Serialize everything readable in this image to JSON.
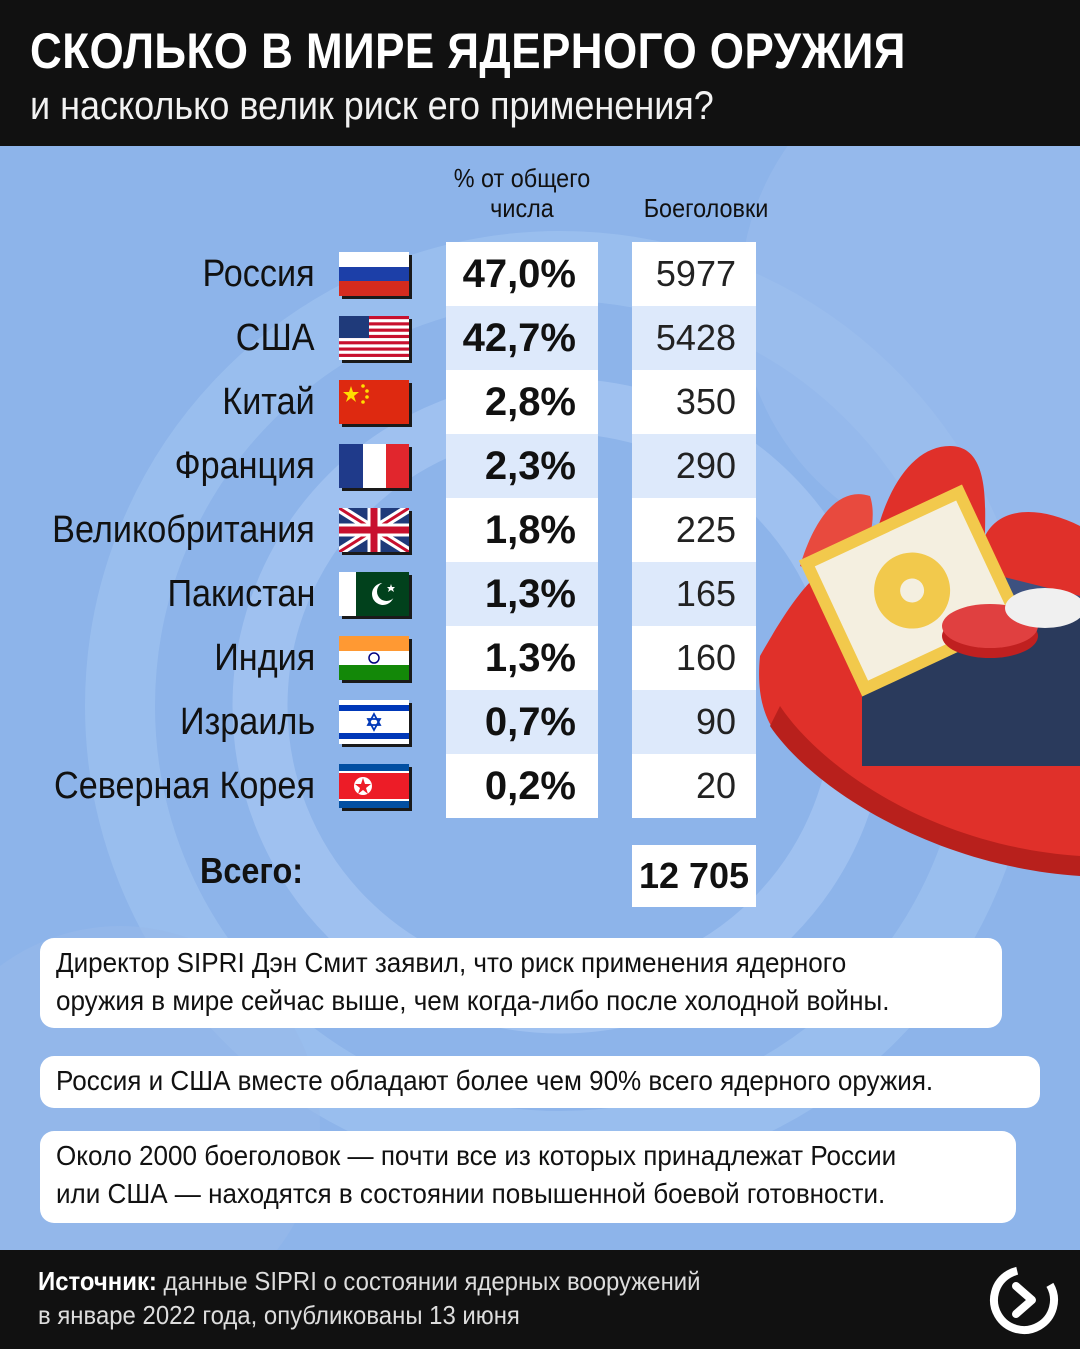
{
  "header": {
    "title": "СКОЛЬКО В МИРЕ ЯДЕРНОГО ОРУЖИЯ",
    "subtitle": "и насколько велик риск его применения?"
  },
  "chart_data": {
    "type": "table",
    "columns": {
      "percent_line1": "% от общего",
      "percent_line2": "числа",
      "warheads": "Боеголовки"
    },
    "rows": [
      {
        "country": "Россия",
        "flag": "russia-flag",
        "percent": "47,0%",
        "warheads": "5977"
      },
      {
        "country": "США",
        "flag": "usa-flag",
        "percent": "42,7%",
        "warheads": "5428"
      },
      {
        "country": "Китай",
        "flag": "china-flag",
        "percent": "2,8%",
        "warheads": "350"
      },
      {
        "country": "Франция",
        "flag": "france-flag",
        "percent": "2,3%",
        "warheads": "290"
      },
      {
        "country": "Великобритания",
        "flag": "uk-flag",
        "percent": "1,8%",
        "warheads": "225"
      },
      {
        "country": "Пакистан",
        "flag": "pakistan-flag",
        "percent": "1,3%",
        "warheads": "165"
      },
      {
        "country": "Индия",
        "flag": "india-flag",
        "percent": "1,3%",
        "warheads": "160"
      },
      {
        "country": "Израиль",
        "flag": "israel-flag",
        "percent": "0,7%",
        "warheads": "90"
      },
      {
        "country": "Северная Корея",
        "flag": "north-korea-flag",
        "percent": "0,2%",
        "warheads": "20"
      }
    ],
    "total_label": "Всего:",
    "total_value": "12 705"
  },
  "notes": [
    {
      "line1": "Директор SIPRI Дэн Смит заявил, что риск применения ядерного",
      "line2": "оружия в мире сейчас выше, чем когда-либо после холодной войны."
    },
    {
      "line1": "Россия и США вместе обладают более чем 90% всего ядерного оружия.",
      "line2": ""
    },
    {
      "line1": "Около 2000 боеголовок — почти все из которых принадлежат России",
      "line2": "или США — находятся в состоянии повышенной боевой готовности."
    }
  ],
  "footer": {
    "source_label": "Источник:",
    "source_text1": " данные SIPRI о состоянии ядерных вооружений",
    "source_text2": "в январе 2022 года, опубликованы 13 июня"
  },
  "colors": {
    "background": "#8db4ea",
    "hand": "#e0302a",
    "box": "#2a3a5c"
  }
}
